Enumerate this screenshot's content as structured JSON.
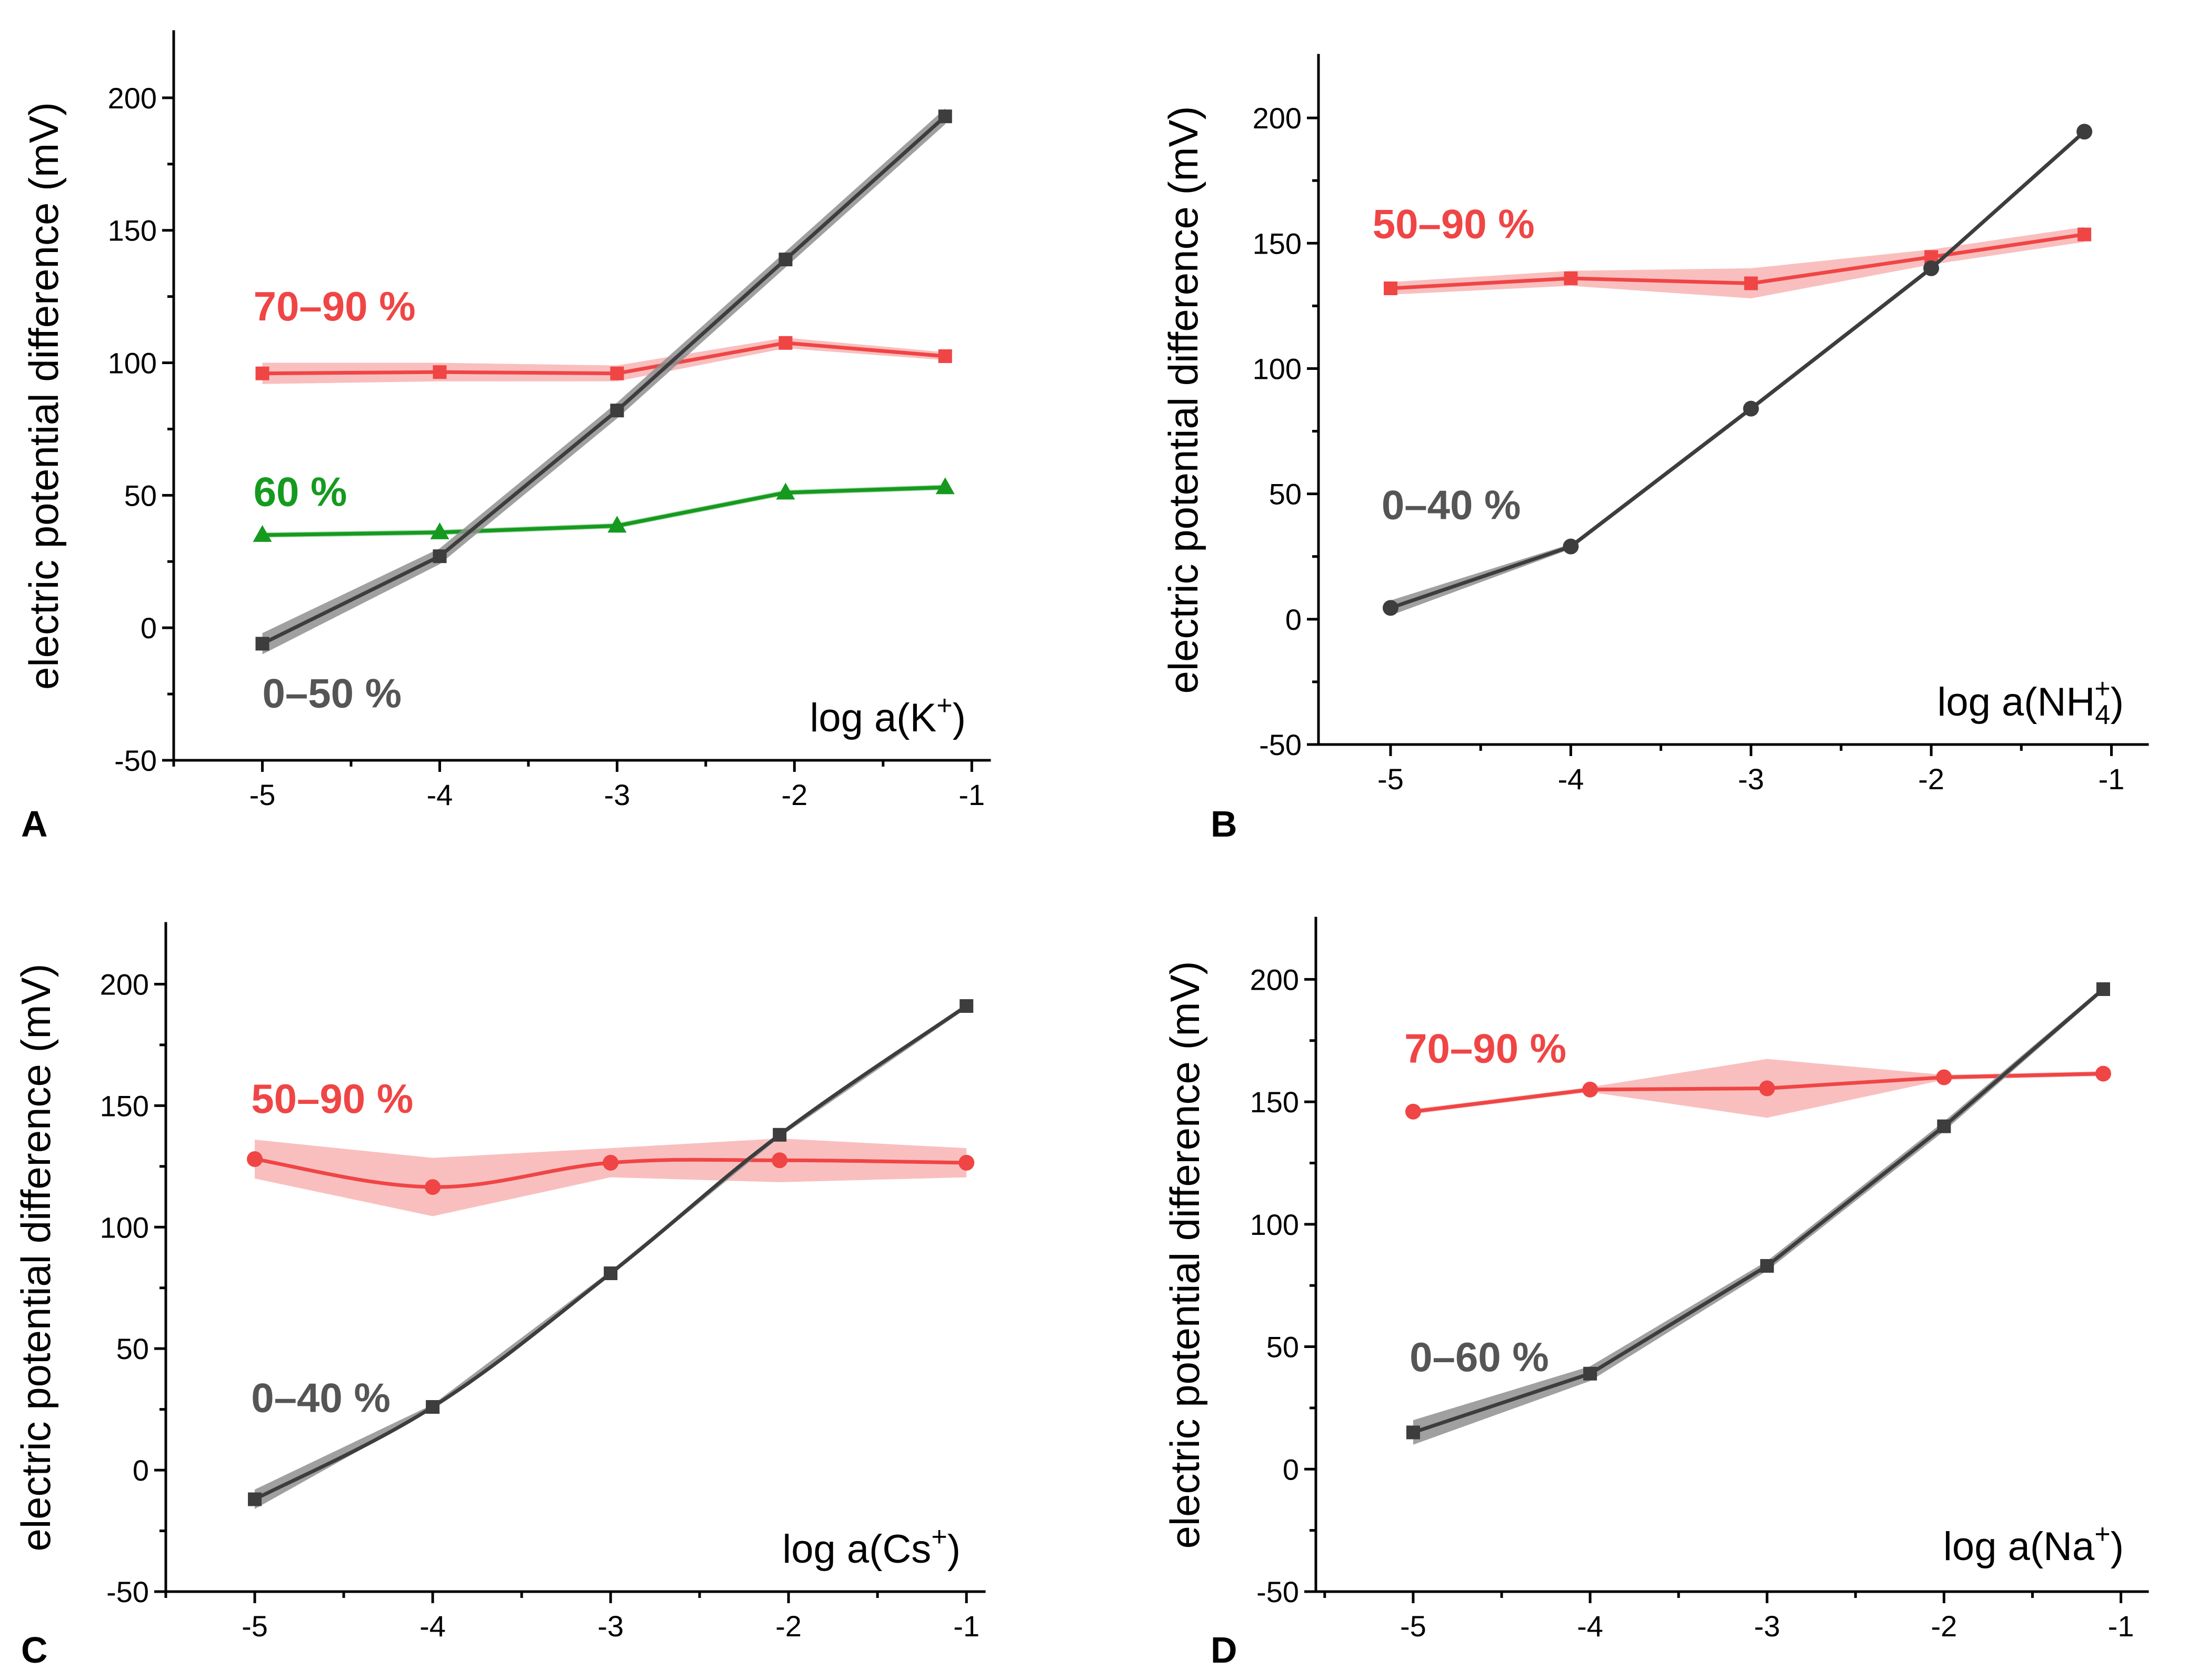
{
  "colors": {
    "gray_line": "#3d3d3d",
    "gray_band": "#8f8f8f",
    "red_line": "#f04545",
    "red_band": "#f8b4b4",
    "green_line": "#159a1f",
    "green_band": "#9ad39d",
    "axis": "#000000"
  },
  "chart_data": [
    {
      "panel": "A",
      "type": "line",
      "ylabel": "electric potential difference (mV)",
      "xlabel": "log a(K",
      "xlabel_sup": "+",
      "xlabel_sub": "",
      "xlabel_close": ")",
      "xlim": [
        -5.5,
        -0.9
      ],
      "ylim": [
        -50,
        225
      ],
      "xticks": [
        -5,
        -4,
        -3,
        -2,
        -1
      ],
      "xtick_labels": [
        "-5",
        "-4",
        "-3",
        "-2",
        "-1"
      ],
      "yticks": [
        -50,
        0,
        50,
        100,
        150,
        200
      ],
      "ytick_labels": [
        "-50",
        "0",
        "50",
        "100",
        "150",
        "200"
      ],
      "series": [
        {
          "name": "70–90 %",
          "color": "red",
          "marker": "square",
          "x": [
            -5,
            -4,
            -3,
            -2.05,
            -1.15
          ],
          "y": [
            96,
            96.5,
            96,
            107.5,
            102.5
          ],
          "band": [
            4,
            3.5,
            3,
            2,
            1.5
          ],
          "label_pos": [
            -5.05,
            116
          ]
        },
        {
          "name": "60 %",
          "color": "green",
          "marker": "triangle",
          "x": [
            -5,
            -4,
            -3,
            -2.05,
            -1.15
          ],
          "y": [
            35,
            36,
            38.5,
            51,
            53
          ],
          "band": [
            1,
            1,
            1,
            1,
            1
          ],
          "label_pos": [
            -5.05,
            46
          ]
        },
        {
          "name": "0–50 %",
          "color": "gray",
          "marker": "square",
          "x": [
            -5,
            -4,
            -3,
            -2.05,
            -1.15
          ],
          "y": [
            -6,
            27,
            82,
            139,
            193
          ],
          "band": [
            4,
            3,
            3,
            3,
            3
          ],
          "label_pos": [
            -5.0,
            -30
          ]
        }
      ]
    },
    {
      "panel": "B",
      "type": "line",
      "ylabel": "electric potential difference (mV)",
      "xlabel": "log a(NH",
      "xlabel_sup": "+",
      "xlabel_sub": "4",
      "xlabel_close": ")",
      "xlim": [
        -5.4,
        -0.8
      ],
      "ylim": [
        -50,
        225
      ],
      "xticks": [
        -5,
        -4,
        -3,
        -2,
        -1
      ],
      "xtick_labels": [
        "-5",
        "-4",
        "-3",
        "-2",
        "-1"
      ],
      "yticks": [
        -50,
        0,
        50,
        100,
        150,
        200
      ],
      "ytick_labels": [
        "-50",
        "0",
        "50",
        "100",
        "150",
        "200"
      ],
      "series": [
        {
          "name": "50–90 %",
          "color": "red",
          "marker": "square",
          "x": [
            -5,
            -4,
            -3,
            -2,
            -1.15
          ],
          "y": [
            132,
            136,
            134,
            144.5,
            153.5
          ],
          "band": [
            2.5,
            3,
            6,
            3,
            3
          ],
          "label_pos": [
            -5.1,
            152
          ]
        },
        {
          "name": "0–40 %",
          "color": "gray",
          "marker": "circle",
          "x": [
            -5,
            -4,
            -3,
            -2,
            -1.15
          ],
          "y": [
            4.5,
            29,
            84,
            140,
            194.5
          ],
          "band": [
            3,
            1,
            1,
            1,
            1
          ],
          "label_pos": [
            -5.05,
            40
          ]
        }
      ]
    },
    {
      "panel": "C",
      "type": "line",
      "ylabel": "electric potential difference (mV)",
      "xlabel": "log a(Cs",
      "xlabel_sup": "+",
      "xlabel_sub": "",
      "xlabel_close": ")",
      "xlim": [
        -5.5,
        -0.9
      ],
      "ylim": [
        -50,
        225
      ],
      "xticks": [
        -5,
        -4,
        -3,
        -2,
        -1
      ],
      "xtick_labels": [
        "-5",
        "-4",
        "-3",
        "-2",
        "-1"
      ],
      "yticks": [
        -50,
        0,
        50,
        100,
        150,
        200
      ],
      "ytick_labels": [
        "-50",
        "0",
        "50",
        "100",
        "150",
        "200"
      ],
      "series": [
        {
          "name": "50–90 %",
          "color": "red",
          "marker": "circle",
          "x": [
            -5,
            -4,
            -3,
            -2.05,
            -1.0
          ],
          "y": [
            128,
            116.5,
            126.5,
            127.5,
            126.5
          ],
          "band": [
            8,
            12,
            6,
            9,
            6
          ],
          "label_pos": [
            -5.02,
            147
          ]
        },
        {
          "name": "0–40 %",
          "color": "gray",
          "marker": "square",
          "x": [
            -5,
            -4,
            -3,
            -2.05,
            -1.0
          ],
          "y": [
            -12,
            26,
            81,
            138,
            191
          ],
          "band": [
            4,
            1,
            1,
            1,
            1
          ],
          "label_pos": [
            -5.02,
            24
          ]
        }
      ]
    },
    {
      "panel": "D",
      "type": "line",
      "ylabel": "electric potential difference (mV)",
      "xlabel": "log a(Na",
      "xlabel_sup": "+",
      "xlabel_sub": "",
      "xlabel_close": ")",
      "xlim": [
        -5.55,
        -0.85
      ],
      "ylim": [
        -50,
        225
      ],
      "xticks": [
        -5,
        -4,
        -3,
        -2,
        -1
      ],
      "xtick_labels": [
        "-5",
        "-4",
        "-3",
        "-2",
        "-1"
      ],
      "yticks": [
        -50,
        0,
        50,
        100,
        150,
        200
      ],
      "ytick_labels": [
        "-50",
        "0",
        "50",
        "100",
        "150",
        "200"
      ],
      "series": [
        {
          "name": "70–90 %",
          "color": "red",
          "marker": "circle",
          "x": [
            -5,
            -4,
            -3,
            -2,
            -1.1
          ],
          "y": [
            146,
            155,
            155.5,
            160,
            161.5
          ],
          "band": [
            1,
            1,
            12,
            1,
            1
          ],
          "label_pos": [
            -5.05,
            166
          ]
        },
        {
          "name": "0–60 %",
          "color": "gray",
          "marker": "square",
          "x": [
            -5,
            -4,
            -3,
            -2,
            -1.1
          ],
          "y": [
            15,
            39,
            83,
            140,
            196
          ],
          "band": [
            5,
            3,
            2,
            2,
            1
          ],
          "label_pos": [
            -5.02,
            40
          ]
        }
      ]
    }
  ]
}
